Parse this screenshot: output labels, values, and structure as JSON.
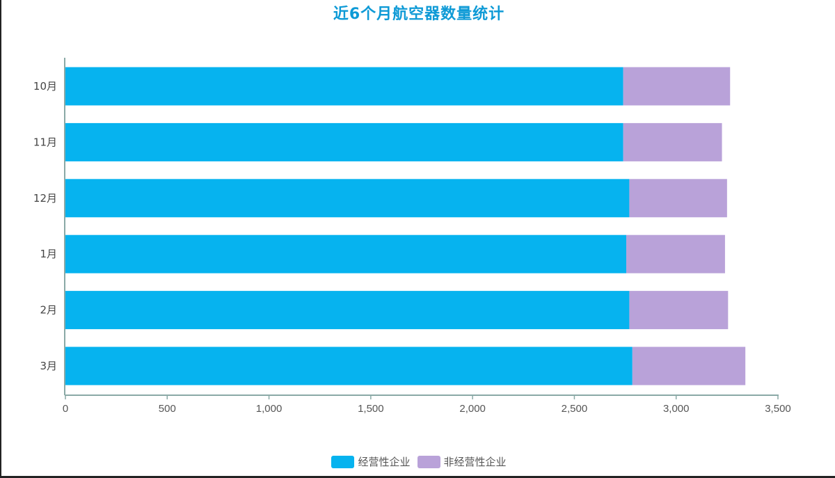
{
  "chart_data": {
    "type": "bar",
    "orientation": "horizontal",
    "stacked": true,
    "title": "近6个月航空器数量统计",
    "categories": [
      "10月",
      "11月",
      "12月",
      "1月",
      "2月",
      "3月"
    ],
    "series": [
      {
        "name": "经营性企业",
        "color": "#06b3ef",
        "values": [
          2740,
          2740,
          2770,
          2755,
          2770,
          2785
        ]
      },
      {
        "name": "非经营性企业",
        "color": "#b9a2d9",
        "values": [
          525,
          485,
          480,
          485,
          485,
          555
        ]
      }
    ],
    "xlim": [
      0,
      3500
    ],
    "xticks": [
      "0",
      "500",
      "1,000",
      "1,500",
      "2,000",
      "2,500",
      "3,000",
      "3,500"
    ],
    "grid": false,
    "legend_position": "bottom"
  }
}
